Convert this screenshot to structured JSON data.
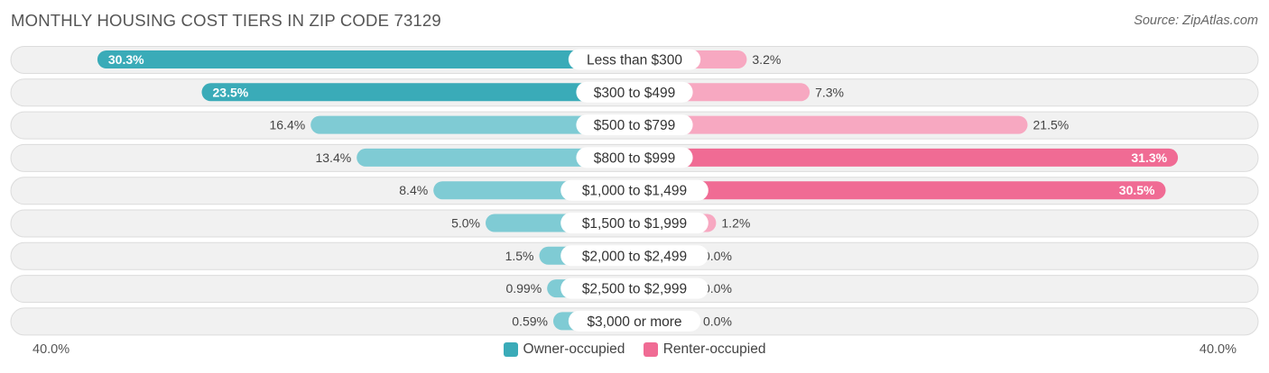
{
  "header": {
    "title": "MONTHLY HOUSING COST TIERS IN ZIP CODE 73129",
    "source": "Source: ZipAtlas.com"
  },
  "axis": {
    "left_label": "40.0%",
    "right_label": "40.0%"
  },
  "legend": {
    "owner_label": "Owner-occupied",
    "renter_label": "Renter-occupied"
  },
  "colors": {
    "owner_strong": "#3aabb8",
    "owner_light": "#7fcbd4",
    "renter_strong": "#f06b94",
    "renter_light": "#f7a8c1",
    "row_bg": "#f1f1f1",
    "row_border": "#dcdcdc"
  },
  "chart_data": {
    "type": "bar",
    "orientation": "diverging-horizontal",
    "xlim": [
      -40,
      40
    ],
    "categories": [
      "Less than $300",
      "$300 to $499",
      "$500 to $799",
      "$800 to $999",
      "$1,000 to $1,499",
      "$1,500 to $1,999",
      "$2,000 to $2,499",
      "$2,500 to $2,999",
      "$3,000 or more"
    ],
    "series": [
      {
        "name": "Owner-occupied",
        "values": [
          30.3,
          23.5,
          16.4,
          13.4,
          8.4,
          5.0,
          1.5,
          0.99,
          0.59
        ],
        "labels": [
          "30.3%",
          "23.5%",
          "16.4%",
          "13.4%",
          "8.4%",
          "5.0%",
          "1.5%",
          "0.99%",
          "0.59%"
        ]
      },
      {
        "name": "Renter-occupied",
        "values": [
          3.2,
          7.3,
          21.5,
          31.3,
          30.5,
          1.2,
          0.0,
          0.0,
          0.0
        ],
        "labels": [
          "3.2%",
          "7.3%",
          "21.5%",
          "31.3%",
          "30.5%",
          "1.2%",
          "0.0%",
          "0.0%",
          "0.0%"
        ]
      }
    ]
  }
}
